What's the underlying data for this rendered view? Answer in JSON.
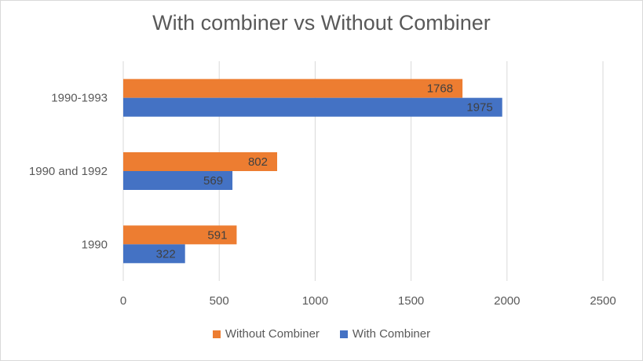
{
  "chart_data": {
    "type": "bar",
    "orientation": "horizontal",
    "title": "With combiner vs Without Combiner",
    "categories": [
      "1990-1993",
      "1990 and 1992",
      "1990"
    ],
    "series": [
      {
        "name": "Without Combiner",
        "color": "#ED7D31",
        "values": [
          1768,
          802,
          591
        ]
      },
      {
        "name": "With Combiner",
        "color": "#4472C4",
        "values": [
          1975,
          569,
          322
        ]
      }
    ],
    "xlim": [
      0,
      2500
    ],
    "xticks": [
      0,
      500,
      1000,
      1500,
      2000,
      2500
    ],
    "grid": true,
    "legend": "bottom"
  }
}
